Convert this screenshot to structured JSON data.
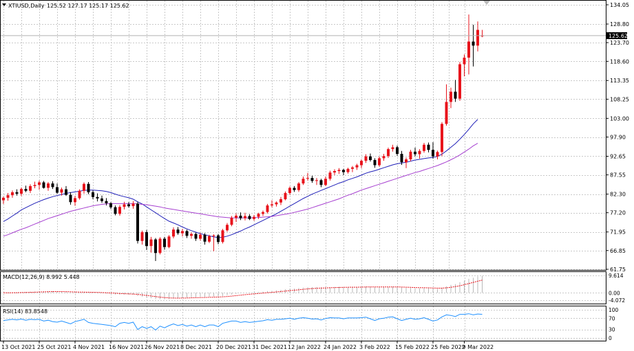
{
  "chart_data": {
    "type": "candlestick",
    "symbol_header": "XTIUSD,Daily",
    "ohlc_header": "125.52 127.17 125.17 125.62",
    "current_price_label": "125.62",
    "current_price": 125.62,
    "price_axis_ticks": [
      "134.05",
      "128.80",
      "123.70",
      "118.60",
      "113.35",
      "108.25",
      "103.00",
      "97.90",
      "92.65",
      "87.55",
      "82.30",
      "77.20",
      "71.95",
      "66.85",
      "61.75"
    ],
    "price_tick_values": [
      134.05,
      128.8,
      123.7,
      118.6,
      113.35,
      108.25,
      103.0,
      97.9,
      92.65,
      87.55,
      82.3,
      77.2,
      71.95,
      66.85,
      61.75
    ],
    "ylim": [
      61.75,
      134.05
    ],
    "date_labels": [
      "13 Oct 2021",
      "25 Oct 2021",
      "4 Nov 2021",
      "16 Nov 2021",
      "26 Nov 2021",
      "8 Dec 2021",
      "20 Dec 2021",
      "31 Dec 2021",
      "12 Jan 2022",
      "24 Jan 2022",
      "3 Feb 2022",
      "15 Feb 2022",
      "25 Feb 2022",
      "9 Mar 2022"
    ],
    "date_label_bar_index": [
      0,
      8,
      16,
      24,
      32,
      40,
      48,
      56,
      64,
      72,
      80,
      88,
      96,
      103
    ],
    "candles": [
      [
        80.6,
        81.6,
        79.6,
        81.3
      ],
      [
        81.3,
        82.6,
        80.5,
        82.0
      ],
      [
        82.0,
        83.3,
        81.3,
        82.8
      ],
      [
        82.8,
        83.6,
        81.9,
        82.4
      ],
      [
        82.4,
        84.1,
        81.8,
        83.7
      ],
      [
        83.7,
        84.6,
        82.8,
        83.2
      ],
      [
        83.2,
        85.0,
        82.6,
        84.5
      ],
      [
        84.5,
        85.7,
        83.9,
        84.8
      ],
      [
        84.8,
        86.0,
        83.5,
        85.5
      ],
      [
        85.5,
        85.9,
        83.8,
        84.0
      ],
      [
        84.0,
        85.6,
        83.2,
        85.2
      ],
      [
        85.2,
        85.8,
        83.7,
        84.2
      ],
      [
        84.2,
        85.2,
        82.4,
        82.7
      ],
      [
        82.7,
        84.1,
        81.9,
        83.6
      ],
      [
        83.6,
        84.5,
        81.8,
        82.1
      ],
      [
        82.1,
        82.8,
        79.4,
        80.1
      ],
      [
        80.1,
        81.8,
        79.1,
        81.2
      ],
      [
        81.2,
        83.6,
        80.8,
        83.2
      ],
      [
        83.2,
        85.5,
        82.4,
        85.1
      ],
      [
        85.1,
        85.6,
        82.3,
        82.8
      ],
      [
        82.8,
        83.3,
        80.9,
        81.5
      ],
      [
        81.5,
        82.5,
        80.3,
        81.1
      ],
      [
        81.1,
        81.9,
        79.9,
        80.4
      ],
      [
        80.4,
        81.2,
        79.2,
        79.8
      ],
      [
        79.8,
        80.1,
        78.2,
        78.7
      ],
      [
        78.7,
        79.2,
        76.5,
        76.9
      ],
      [
        76.9,
        79.3,
        76.4,
        78.8
      ],
      [
        78.8,
        80.2,
        78.1,
        79.5
      ],
      [
        79.5,
        80.1,
        78.6,
        79.0
      ],
      [
        79.0,
        80.4,
        78.3,
        79.7
      ],
      [
        79.7,
        80.2,
        68.8,
        69.5
      ],
      [
        69.5,
        72.3,
        68.5,
        71.9
      ],
      [
        71.9,
        72.5,
        67.0,
        68.1
      ],
      [
        68.1,
        70.6,
        66.3,
        69.9
      ],
      [
        69.9,
        70.3,
        64.0,
        66.2
      ],
      [
        66.2,
        70.5,
        65.8,
        70.1
      ],
      [
        70.1,
        70.6,
        67.1,
        67.8
      ],
      [
        67.8,
        71.1,
        67.5,
        70.7
      ],
      [
        70.7,
        73.2,
        70.2,
        72.6
      ],
      [
        72.6,
        73.3,
        71.2,
        71.6
      ],
      [
        71.6,
        72.8,
        70.7,
        72.2
      ],
      [
        72.2,
        72.6,
        70.3,
        70.9
      ],
      [
        70.9,
        71.8,
        70.1,
        71.4
      ],
      [
        71.4,
        71.8,
        69.5,
        70.1
      ],
      [
        70.1,
        71.7,
        69.6,
        71.2
      ],
      [
        71.2,
        71.6,
        68.5,
        69.3
      ],
      [
        69.3,
        71.2,
        68.9,
        70.8
      ],
      [
        70.8,
        71.3,
        66.7,
        71.0
      ],
      [
        71.0,
        71.4,
        68.6,
        69.2
      ],
      [
        69.2,
        72.8,
        68.8,
        72.4
      ],
      [
        72.4,
        74.4,
        72.0,
        73.9
      ],
      [
        73.9,
        76.3,
        73.5,
        75.8
      ],
      [
        75.8,
        77.0,
        74.7,
        76.4
      ],
      [
        76.4,
        77.3,
        75.2,
        75.7
      ],
      [
        75.7,
        77.2,
        75.1,
        76.3
      ],
      [
        76.3,
        76.8,
        75.2,
        75.5
      ],
      [
        75.5,
        76.6,
        75.0,
        76.1
      ],
      [
        76.1,
        77.2,
        75.5,
        76.9
      ],
      [
        76.9,
        77.8,
        76.3,
        77.4
      ],
      [
        77.4,
        79.6,
        77.0,
        79.2
      ],
      [
        79.2,
        80.6,
        78.7,
        79.5
      ],
      [
        79.5,
        80.3,
        78.9,
        80.0
      ],
      [
        80.0,
        81.5,
        79.3,
        80.9
      ],
      [
        80.9,
        83.0,
        80.6,
        82.6
      ],
      [
        82.6,
        84.4,
        82.1,
        84.0
      ],
      [
        84.0,
        84.5,
        82.9,
        83.4
      ],
      [
        83.4,
        85.6,
        82.9,
        85.2
      ],
      [
        85.2,
        87.1,
        84.8,
        86.5
      ],
      [
        86.5,
        88.1,
        86.0,
        86.7
      ],
      [
        86.7,
        87.3,
        85.4,
        85.9
      ],
      [
        85.9,
        86.7,
        84.8,
        86.1
      ],
      [
        86.1,
        86.5,
        84.2,
        84.8
      ],
      [
        84.8,
        87.1,
        84.5,
        86.5
      ],
      [
        86.5,
        88.7,
        86.0,
        88.2
      ],
      [
        88.2,
        89.1,
        87.5,
        88.6
      ],
      [
        88.6,
        89.4,
        87.8,
        88.9
      ],
      [
        88.9,
        89.2,
        87.5,
        88.3
      ],
      [
        88.3,
        89.5,
        87.9,
        89.2
      ],
      [
        89.2,
        90.0,
        88.3,
        89.6
      ],
      [
        89.6,
        90.6,
        88.9,
        90.2
      ],
      [
        90.2,
        91.8,
        89.4,
        91.4
      ],
      [
        91.4,
        93.2,
        90.8,
        92.6
      ],
      [
        92.6,
        93.4,
        91.2,
        91.6
      ],
      [
        91.6,
        92.1,
        89.5,
        90.2
      ],
      [
        90.2,
        92.6,
        89.8,
        92.1
      ],
      [
        92.1,
        93.3,
        91.4,
        92.7
      ],
      [
        92.7,
        95.0,
        92.2,
        94.6
      ],
      [
        94.6,
        95.8,
        93.9,
        95.1
      ],
      [
        95.1,
        95.6,
        92.8,
        93.3
      ],
      [
        93.3,
        94.1,
        90.3,
        91.0
      ],
      [
        91.0,
        92.3,
        89.4,
        91.8
      ],
      [
        91.8,
        94.4,
        91.3,
        93.9
      ],
      [
        93.9,
        95.0,
        92.6,
        93.2
      ],
      [
        93.2,
        94.6,
        92.0,
        94.1
      ],
      [
        94.1,
        96.3,
        93.6,
        95.8
      ],
      [
        95.8,
        96.4,
        93.7,
        94.4
      ],
      [
        94.4,
        96.5,
        92.0,
        92.6
      ],
      [
        92.6,
        94.2,
        91.8,
        93.8
      ],
      [
        93.8,
        102.0,
        92.7,
        101.5
      ],
      [
        101.5,
        112.3,
        101.0,
        107.5
      ],
      [
        107.5,
        111.4,
        105.8,
        110.3
      ],
      [
        110.3,
        113.5,
        107.5,
        108.4
      ],
      [
        108.4,
        118.4,
        107.8,
        117.8
      ],
      [
        117.8,
        120.5,
        114.5,
        119.6
      ],
      [
        119.6,
        131.4,
        115.0,
        124.0
      ],
      [
        124.0,
        128.6,
        117.2,
        122.9
      ],
      [
        122.9,
        129.5,
        121.3,
        127.2
      ],
      [
        125.5,
        127.2,
        125.2,
        125.6
      ]
    ],
    "moving_averages": [
      {
        "color": "#1f1fb8",
        "values": [
          74.8,
          75.5,
          76.3,
          77.1,
          78.0,
          78.6,
          79.2,
          79.8,
          80.3,
          80.8,
          81.2,
          81.6,
          81.9,
          82.2,
          82.5,
          82.7,
          82.9,
          83.1,
          83.3,
          83.4,
          83.4,
          83.3,
          83.2,
          83.0,
          82.7,
          82.3,
          81.9,
          81.6,
          81.3,
          80.9,
          80.2,
          79.6,
          78.8,
          78.0,
          77.2,
          76.4,
          75.6,
          74.9,
          74.4,
          73.9,
          73.3,
          72.8,
          72.3,
          71.9,
          71.5,
          71.2,
          70.9,
          70.6,
          70.4,
          70.5,
          70.8,
          71.2,
          71.7,
          72.2,
          72.8,
          73.3,
          73.9,
          74.5,
          75.1,
          75.7,
          76.3,
          76.9,
          77.6,
          78.3,
          79.0,
          79.7,
          80.4,
          81.1,
          81.7,
          82.3,
          82.8,
          83.3,
          83.8,
          84.3,
          84.8,
          85.3,
          85.7,
          86.2,
          86.6,
          87.0,
          87.5,
          88.0,
          88.4,
          88.7,
          89.1,
          89.5,
          89.9,
          90.3,
          90.6,
          90.8,
          91.0,
          91.3,
          91.6,
          91.8,
          92.0,
          92.2,
          92.3,
          92.6,
          93.2,
          94.1,
          95.1,
          96.1,
          97.3,
          98.6,
          100.0,
          101.5,
          102.7
        ]
      },
      {
        "color": "#a63fd0",
        "values": [
          70.8,
          71.2,
          71.7,
          72.2,
          72.7,
          73.1,
          73.6,
          74.1,
          74.6,
          75.1,
          75.6,
          76.0,
          76.4,
          76.8,
          77.2,
          77.6,
          77.9,
          78.2,
          78.5,
          78.8,
          79.1,
          79.3,
          79.5,
          79.6,
          79.7,
          79.7,
          79.7,
          79.7,
          79.7,
          79.7,
          79.6,
          79.5,
          79.4,
          79.2,
          79.0,
          78.8,
          78.5,
          78.3,
          78.1,
          77.9,
          77.7,
          77.5,
          77.3,
          77.1,
          76.9,
          76.7,
          76.5,
          76.3,
          76.1,
          76.0,
          75.9,
          75.8,
          75.8,
          75.8,
          75.8,
          75.8,
          75.9,
          75.9,
          76.0,
          76.1,
          76.2,
          76.4,
          76.6,
          76.8,
          77.0,
          77.3,
          77.6,
          77.9,
          78.2,
          78.6,
          79.0,
          79.4,
          79.8,
          80.2,
          80.6,
          81.0,
          81.5,
          82.0,
          82.4,
          82.9,
          83.4,
          83.8,
          84.2,
          84.6,
          85.0,
          85.4,
          85.8,
          86.2,
          86.6,
          87.0,
          87.4,
          87.8,
          88.2,
          88.5,
          88.9,
          89.3,
          89.7,
          90.1,
          90.6,
          91.1,
          91.7,
          92.3,
          93.0,
          93.8,
          94.6,
          95.5,
          96.2
        ]
      }
    ],
    "macd": {
      "label": "MACD(12,26,9) 8.992 5.448",
      "axis_ticks": [
        "9.614",
        "0.00",
        "-4.072"
      ],
      "axis_tick_values": [
        9.614,
        0.0,
        -4.072
      ],
      "ylim": [
        -4.072,
        9.614
      ]
    },
    "rsi": {
      "label": "RSI(14) 83.8548",
      "axis_ticks": [
        "100",
        "70",
        "30",
        "0"
      ],
      "axis_tick_values": [
        100,
        70,
        30,
        0
      ],
      "ylim": [
        0,
        100
      ],
      "values": [
        62,
        64,
        66,
        64,
        67,
        63,
        66,
        65,
        66,
        60,
        63,
        58,
        56,
        60,
        55,
        50,
        58,
        62,
        66,
        55,
        52,
        50,
        48,
        46,
        44,
        40,
        52,
        55,
        52,
        56,
        30,
        40,
        34,
        40,
        28,
        42,
        36,
        44,
        50,
        44,
        48,
        42,
        46,
        40,
        46,
        40,
        46,
        46,
        40,
        52,
        56,
        60,
        60,
        55,
        58,
        55,
        57,
        59,
        61,
        65,
        63,
        66,
        66,
        68,
        70,
        66,
        70,
        72,
        70,
        67,
        68,
        64,
        69,
        72,
        71,
        71,
        68,
        71,
        71,
        71,
        72,
        74,
        68,
        62,
        68,
        70,
        74,
        75,
        68,
        62,
        66,
        70,
        66,
        68,
        72,
        66,
        60,
        64,
        75,
        82,
        80,
        76,
        84,
        84,
        86,
        82,
        85,
        83.85
      ]
    },
    "grid": true
  }
}
